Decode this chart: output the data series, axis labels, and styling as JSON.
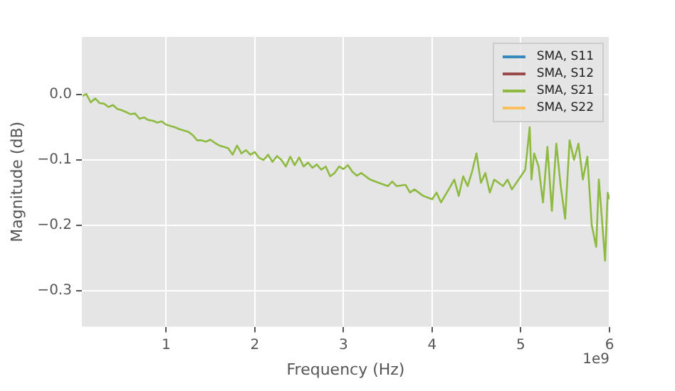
{
  "chart_data": {
    "type": "line",
    "xlabel": "Frequency (Hz)",
    "ylabel": "Magnitude (dB)",
    "annotations": [
      "1e9"
    ],
    "x": [
      0.06,
      0.1,
      0.15,
      0.2,
      0.25,
      0.3,
      0.35,
      0.4,
      0.45,
      0.5,
      0.55,
      0.6,
      0.65,
      0.7,
      0.75,
      0.8,
      0.85,
      0.9,
      0.95,
      1.0,
      1.05,
      1.1,
      1.15,
      1.2,
      1.25,
      1.3,
      1.35,
      1.4,
      1.45,
      1.5,
      1.55,
      1.6,
      1.65,
      1.7,
      1.75,
      1.8,
      1.85,
      1.9,
      1.95,
      2.0,
      2.05,
      2.1,
      2.15,
      2.2,
      2.25,
      2.3,
      2.35,
      2.4,
      2.45,
      2.5,
      2.55,
      2.6,
      2.65,
      2.7,
      2.75,
      2.8,
      2.85,
      2.9,
      2.95,
      3.0,
      3.05,
      3.1,
      3.15,
      3.2,
      3.3,
      3.4,
      3.5,
      3.55,
      3.6,
      3.7,
      3.75,
      3.8,
      3.9,
      4.0,
      4.05,
      4.1,
      4.2,
      4.25,
      4.3,
      4.35,
      4.4,
      4.45,
      4.5,
      4.55,
      4.6,
      4.65,
      4.7,
      4.8,
      4.85,
      4.9,
      5.0,
      5.05,
      5.1,
      5.12,
      5.15,
      5.2,
      5.25,
      5.3,
      5.35,
      5.4,
      5.45,
      5.5,
      5.55,
      5.6,
      5.65,
      5.7,
      5.75,
      5.8,
      5.85,
      5.88,
      5.92,
      5.95,
      5.98,
      6.0
    ],
    "series": [
      {
        "name": "SMA, S11",
        "color": "#348abd",
        "values": [
          null,
          null,
          null,
          null,
          null,
          null,
          null,
          null,
          null,
          null,
          null,
          null,
          null,
          null,
          null,
          null,
          null,
          null,
          null,
          null,
          null,
          null,
          null,
          null,
          null,
          null,
          null,
          null,
          null,
          null,
          null,
          null,
          null,
          null,
          null,
          null,
          null,
          null,
          null,
          null,
          null,
          null,
          null,
          null,
          null,
          null,
          null,
          null,
          null,
          null,
          null,
          null,
          null,
          null,
          null,
          null,
          null,
          null,
          null,
          null,
          null,
          null,
          null,
          null,
          null,
          null,
          null,
          null,
          null,
          null,
          null,
          null,
          null,
          null,
          null,
          null,
          null,
          null,
          null,
          null,
          null,
          null,
          null,
          null,
          null,
          null,
          null,
          null,
          null,
          null,
          null,
          null,
          null,
          null,
          null,
          null,
          null,
          null,
          null,
          null,
          null,
          null,
          null,
          null,
          null,
          null,
          null,
          null,
          null,
          null,
          null,
          null,
          null,
          null
        ]
      },
      {
        "name": "SMA, S12",
        "color": "#9b4a4a",
        "values": [
          null,
          null,
          null,
          null,
          null,
          null,
          null,
          null,
          null,
          null,
          null,
          null,
          null,
          null,
          null,
          null,
          null,
          null,
          null,
          null,
          null,
          null,
          null,
          null,
          null,
          null,
          null,
          null,
          null,
          null,
          null,
          null,
          null,
          null,
          null,
          null,
          null,
          null,
          null,
          null,
          null,
          null,
          null,
          null,
          null,
          null,
          null,
          null,
          null,
          null,
          null,
          null,
          null,
          null,
          null,
          null,
          null,
          null,
          null,
          null,
          null,
          null,
          null,
          null,
          null,
          null,
          null,
          null,
          null,
          null,
          null,
          null,
          null,
          null,
          null,
          null,
          null,
          null,
          null,
          null,
          null,
          null,
          null,
          null,
          null,
          null,
          null,
          null,
          null,
          null,
          null,
          null,
          null,
          null,
          null,
          null,
          null,
          null,
          null,
          null,
          null,
          null,
          null,
          null,
          null,
          null,
          null,
          null,
          null,
          null,
          null,
          null,
          null,
          null
        ]
      },
      {
        "name": "SMA, S21",
        "color": "#8eba42",
        "values": [
          -0.002,
          0.001,
          -0.012,
          -0.006,
          -0.013,
          -0.014,
          -0.019,
          -0.016,
          -0.022,
          -0.024,
          -0.027,
          -0.03,
          -0.029,
          -0.037,
          -0.035,
          -0.039,
          -0.04,
          -0.043,
          -0.041,
          -0.046,
          -0.048,
          -0.05,
          -0.053,
          -0.055,
          -0.057,
          -0.062,
          -0.07,
          -0.07,
          -0.072,
          -0.069,
          -0.074,
          -0.078,
          -0.08,
          -0.082,
          -0.092,
          -0.078,
          -0.09,
          -0.085,
          -0.092,
          -0.088,
          -0.097,
          -0.1,
          -0.092,
          -0.103,
          -0.094,
          -0.1,
          -0.11,
          -0.095,
          -0.108,
          -0.096,
          -0.11,
          -0.104,
          -0.112,
          -0.107,
          -0.115,
          -0.11,
          -0.125,
          -0.12,
          -0.11,
          -0.114,
          -0.108,
          -0.118,
          -0.124,
          -0.12,
          -0.13,
          -0.135,
          -0.14,
          -0.133,
          -0.14,
          -0.138,
          -0.15,
          -0.145,
          -0.155,
          -0.16,
          -0.15,
          -0.165,
          -0.142,
          -0.13,
          -0.155,
          -0.125,
          -0.14,
          -0.118,
          -0.09,
          -0.135,
          -0.12,
          -0.15,
          -0.13,
          -0.14,
          -0.13,
          -0.145,
          -0.125,
          -0.115,
          -0.05,
          -0.13,
          -0.09,
          -0.11,
          -0.165,
          -0.08,
          -0.178,
          -0.075,
          -0.14,
          -0.19,
          -0.07,
          -0.1,
          -0.075,
          -0.13,
          -0.095,
          -0.2,
          -0.233,
          -0.13,
          -0.2,
          -0.254,
          -0.15,
          -0.16
        ]
      },
      {
        "name": "SMA, S22",
        "color": "#fbc15e",
        "values": [
          null,
          null,
          null,
          null,
          null,
          null,
          null,
          null,
          null,
          null,
          null,
          null,
          null,
          null,
          null,
          null,
          null,
          null,
          null,
          null,
          null,
          null,
          null,
          null,
          null,
          null,
          null,
          null,
          null,
          null,
          null,
          null,
          null,
          null,
          null,
          null,
          null,
          null,
          null,
          null,
          null,
          null,
          null,
          null,
          null,
          null,
          null,
          null,
          null,
          null,
          null,
          null,
          null,
          null,
          null,
          null,
          null,
          null,
          null,
          null,
          null,
          null,
          null,
          null,
          null,
          null,
          null,
          null,
          null,
          null,
          null,
          null,
          null,
          null,
          null,
          null,
          null,
          null,
          null,
          null,
          null,
          null,
          null,
          null,
          null,
          null,
          null,
          null,
          null,
          null,
          null,
          null,
          null,
          null,
          null,
          null,
          null,
          null,
          null,
          null,
          null,
          null,
          null,
          null,
          null,
          null,
          null,
          null,
          null,
          null,
          null,
          null,
          null,
          null
        ]
      }
    ],
    "xlim": [
      0.05,
      6
    ],
    "xticks": [
      1,
      2,
      3,
      4,
      5,
      6
    ],
    "ylim": [
      -0.355,
      0.088
    ],
    "yticks": [
      {
        "value": -0.3,
        "label": "−0.3"
      },
      {
        "value": -0.2,
        "label": "−0.2"
      },
      {
        "value": -0.1,
        "label": "−0.1"
      },
      {
        "value": 0,
        "label": "0.0"
      }
    ],
    "grid": true,
    "legend": "top right",
    "line_style": "solid"
  }
}
